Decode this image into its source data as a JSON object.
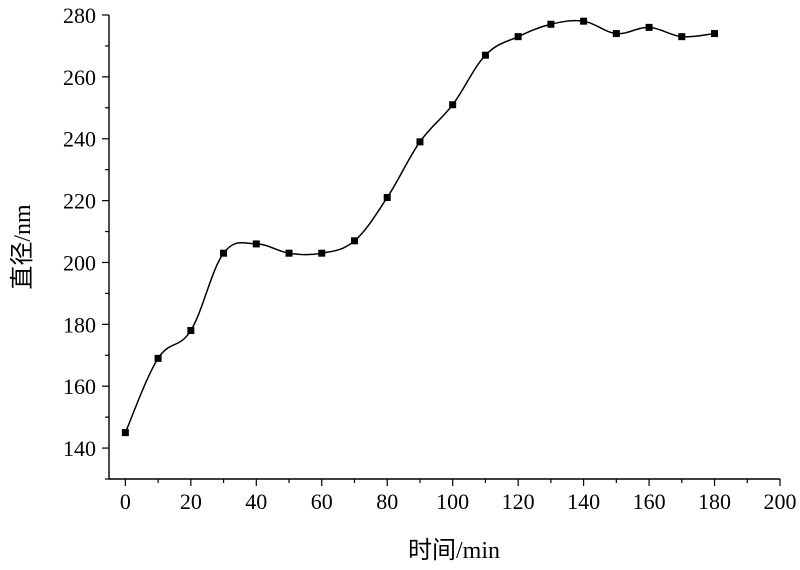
{
  "chart_data": {
    "type": "scatter",
    "title": "",
    "xlabel": "时间/min",
    "ylabel": "直径/nm",
    "xlim": [
      -5,
      200
    ],
    "ylim": [
      130,
      280
    ],
    "x_ticks": [
      0,
      20,
      40,
      60,
      80,
      100,
      120,
      140,
      160,
      180,
      200
    ],
    "y_ticks": [
      140,
      160,
      180,
      200,
      220,
      240,
      260,
      280
    ],
    "grid": false,
    "legend": "none",
    "marker": "square",
    "color": "#000000",
    "smooth_fit_line": true,
    "series": [
      {
        "x": [
          0,
          10,
          20,
          30,
          40,
          50,
          60,
          70,
          80,
          90,
          100,
          110,
          120,
          130,
          140,
          150,
          160,
          170,
          180
        ],
        "y": [
          145,
          169,
          178,
          203,
          206,
          203,
          203,
          207,
          221,
          239,
          251,
          267,
          273,
          277,
          278,
          274,
          276,
          273,
          274
        ]
      }
    ]
  }
}
